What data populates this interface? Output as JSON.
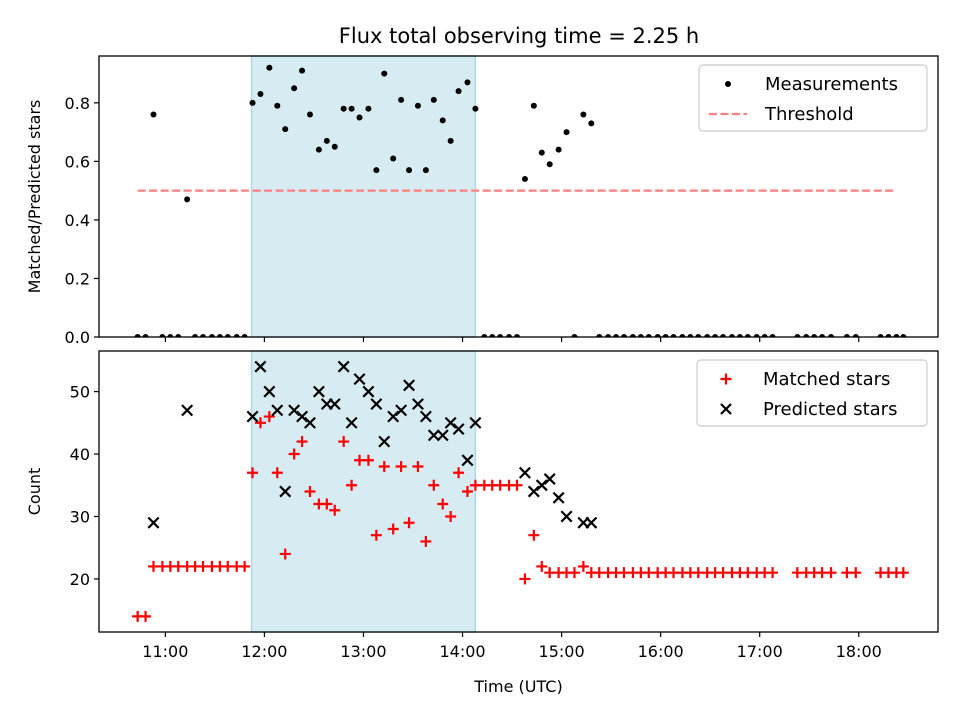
{
  "title": "Flux total observing time = 2.25 h",
  "colors": {
    "measurement": "#000000",
    "threshold": "#ff7f7f",
    "matched": "#ff0000",
    "predicted": "#000000",
    "shade": "#add8e6"
  },
  "chart_data": [
    {
      "type": "scatter",
      "panel": "top",
      "ylabel": "Matched/Predicted stars",
      "xlabel": "",
      "xlim": [
        10.33,
        18.8
      ],
      "ylim": [
        0,
        0.96
      ],
      "yticks": [
        0.0,
        0.2,
        0.4,
        0.6,
        0.8
      ],
      "ytick_labels": [
        "0.0",
        "0.2",
        "0.4",
        "0.6",
        "0.8"
      ],
      "shaded_x_range": [
        11.87,
        14.13
      ],
      "legend_position": "top-right",
      "legend": [
        {
          "label": "Measurements",
          "marker": "dot"
        },
        {
          "label": "Threshold",
          "marker": "dashed-line"
        }
      ],
      "threshold": {
        "y": 0.5,
        "x_range": [
          10.72,
          18.38
        ]
      },
      "series": [
        {
          "name": "Measurements",
          "x": [
            10.72,
            10.8,
            10.88,
            10.97,
            11.05,
            11.13,
            11.22,
            11.3,
            11.38,
            11.47,
            11.55,
            11.63,
            11.72,
            11.8,
            11.88,
            11.96,
            12.05,
            12.13,
            12.21,
            12.3,
            12.38,
            12.46,
            12.55,
            12.63,
            12.71,
            12.8,
            12.88,
            12.96,
            13.05,
            13.13,
            13.21,
            13.3,
            13.38,
            13.46,
            13.55,
            13.63,
            13.71,
            13.8,
            13.88,
            13.96,
            14.05,
            14.13,
            14.22,
            14.3,
            14.38,
            14.47,
            14.55,
            14.63,
            14.72,
            14.8,
            14.88,
            14.97,
            15.05,
            15.13,
            15.22,
            15.3,
            15.38,
            15.47,
            15.55,
            15.63,
            15.72,
            15.8,
            15.88,
            15.97,
            16.05,
            16.13,
            16.22,
            16.3,
            16.38,
            16.47,
            16.55,
            16.63,
            16.72,
            16.8,
            16.88,
            16.97,
            17.05,
            17.13,
            17.38,
            17.47,
            17.55,
            17.63,
            17.72,
            17.88,
            17.97,
            18.22,
            18.3,
            18.38,
            18.45
          ],
          "y": [
            0,
            0,
            0.76,
            0,
            0,
            0,
            0.47,
            0,
            0,
            0,
            0,
            0,
            0,
            0,
            0.8,
            0.83,
            0.92,
            0.79,
            0.71,
            0.85,
            0.91,
            0.76,
            0.64,
            0.67,
            0.65,
            0.78,
            0.78,
            0.75,
            0.78,
            0.57,
            0.9,
            0.61,
            0.81,
            0.57,
            0.79,
            0.57,
            0.81,
            0.74,
            0.67,
            0.84,
            0.87,
            0.78,
            0,
            0,
            0,
            0,
            0,
            0.54,
            0.79,
            0.63,
            0.59,
            0.64,
            0.7,
            0,
            0.76,
            0.73,
            0,
            0,
            0,
            0,
            0,
            0,
            0,
            0,
            0,
            0,
            0,
            0,
            0,
            0,
            0,
            0,
            0,
            0,
            0,
            0,
            0,
            0,
            0,
            0,
            0,
            0,
            0,
            0,
            0,
            0,
            0,
            0,
            0
          ]
        }
      ]
    },
    {
      "type": "scatter",
      "panel": "bottom",
      "ylabel": "Count",
      "xlabel": "Time (UTC)",
      "xlim": [
        10.33,
        18.8
      ],
      "ylim": [
        11.5,
        56.5
      ],
      "yticks": [
        20,
        30,
        40,
        50
      ],
      "ytick_labels": [
        "20",
        "30",
        "40",
        "50"
      ],
      "xticks": [
        11,
        12,
        13,
        14,
        15,
        16,
        17,
        18
      ],
      "xtick_labels": [
        "11:00",
        "12:00",
        "13:00",
        "14:00",
        "15:00",
        "16:00",
        "17:00",
        "18:00"
      ],
      "shaded_x_range": [
        11.87,
        14.13
      ],
      "legend_position": "top-right",
      "legend": [
        {
          "label": "Matched stars",
          "marker": "plus"
        },
        {
          "label": "Predicted stars",
          "marker": "x"
        }
      ],
      "series": [
        {
          "name": "Matched stars",
          "x": [
            10.72,
            10.8,
            10.88,
            10.97,
            11.05,
            11.13,
            11.22,
            11.3,
            11.38,
            11.47,
            11.55,
            11.63,
            11.72,
            11.8,
            11.88,
            11.96,
            12.05,
            12.13,
            12.21,
            12.3,
            12.38,
            12.46,
            12.55,
            12.63,
            12.71,
            12.8,
            12.88,
            12.96,
            13.05,
            13.13,
            13.21,
            13.3,
            13.38,
            13.46,
            13.55,
            13.63,
            13.71,
            13.8,
            13.88,
            13.96,
            14.05,
            14.13,
            14.22,
            14.3,
            14.38,
            14.47,
            14.55,
            14.63,
            14.72,
            14.8,
            14.88,
            14.97,
            15.05,
            15.13,
            15.22,
            15.3,
            15.38,
            15.47,
            15.55,
            15.63,
            15.72,
            15.8,
            15.88,
            15.97,
            16.05,
            16.13,
            16.22,
            16.3,
            16.38,
            16.47,
            16.55,
            16.63,
            16.72,
            16.8,
            16.88,
            16.97,
            17.05,
            17.13,
            17.38,
            17.47,
            17.55,
            17.63,
            17.72,
            17.88,
            17.97,
            18.22,
            18.3,
            18.38,
            18.45
          ],
          "y": [
            14,
            14,
            22,
            22,
            22,
            22,
            22,
            22,
            22,
            22,
            22,
            22,
            22,
            22,
            37,
            45,
            46,
            37,
            24,
            40,
            42,
            34,
            32,
            32,
            31,
            42,
            35,
            39,
            39,
            27,
            38,
            28,
            38,
            29,
            38,
            26,
            35,
            32,
            30,
            37,
            34,
            35,
            35,
            35,
            35,
            35,
            35,
            20,
            27,
            22,
            21,
            21,
            21,
            21,
            22,
            21,
            21,
            21,
            21,
            21,
            21,
            21,
            21,
            21,
            21,
            21,
            21,
            21,
            21,
            21,
            21,
            21,
            21,
            21,
            21,
            21,
            21,
            21,
            21,
            21,
            21,
            21,
            21,
            21,
            21,
            21,
            21,
            21,
            21
          ]
        },
        {
          "name": "Predicted stars",
          "x": [
            10.88,
            11.22,
            11.88,
            11.96,
            12.05,
            12.13,
            12.21,
            12.3,
            12.38,
            12.46,
            12.55,
            12.63,
            12.71,
            12.8,
            12.88,
            12.96,
            13.05,
            13.13,
            13.21,
            13.3,
            13.38,
            13.46,
            13.55,
            13.63,
            13.71,
            13.8,
            13.88,
            13.96,
            14.05,
            14.13,
            14.63,
            14.72,
            14.8,
            14.88,
            14.97,
            15.05,
            15.22,
            15.3
          ],
          "y": [
            29,
            47,
            46,
            54,
            50,
            47,
            34,
            47,
            46,
            45,
            50,
            48,
            48,
            54,
            45,
            52,
            50,
            48,
            42,
            46,
            47,
            51,
            48,
            46,
            43,
            43,
            45,
            44,
            39,
            45,
            37,
            34,
            35,
            36,
            33,
            30,
            29,
            29
          ]
        }
      ]
    }
  ]
}
